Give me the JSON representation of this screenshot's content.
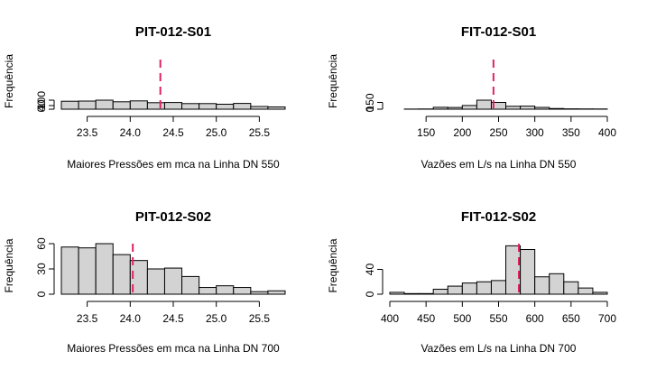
{
  "chart_data": [
    {
      "type": "histogram",
      "title": "PIT-012-S01",
      "xlabel": "Maiores Pressões em mca na Linha DN 550",
      "ylabel": "Frequência",
      "xlim": [
        23.2,
        25.8
      ],
      "ylim": [
        0,
        100
      ],
      "xticks": [
        23.5,
        24.0,
        24.5,
        25.0,
        25.5
      ],
      "xtick_labels": [
        "23.5",
        "24.0",
        "24.5",
        "25.0",
        "25.5"
      ],
      "yticks": [
        0,
        40,
        100
      ],
      "ytick_labels": [
        "0",
        "40",
        "100"
      ],
      "bins": [
        23.2,
        23.4,
        23.6,
        23.8,
        24.0,
        24.2,
        24.4,
        24.6,
        24.8,
        25.0,
        25.2,
        25.4,
        25.6,
        25.8
      ],
      "counts": [
        88,
        90,
        100,
        82,
        92,
        72,
        74,
        62,
        62,
        55,
        64,
        30,
        25
      ],
      "reference_line": 24.35,
      "reference_color": "#e0245e"
    },
    {
      "type": "histogram",
      "title": "FIT-012-S01",
      "xlabel": "Vazões em L/s na Linha DN 550",
      "ylabel": "Frequência",
      "xlim": [
        100,
        400
      ],
      "ylim": [
        0,
        200
      ],
      "xticks": [
        150,
        200,
        250,
        300,
        350,
        400
      ],
      "xtick_labels": [
        "150",
        "200",
        "250",
        "300",
        "350",
        "400"
      ],
      "yticks": [
        0,
        150
      ],
      "ytick_labels": [
        "0",
        "150"
      ],
      "bins": [
        120,
        140,
        160,
        180,
        200,
        220,
        240,
        260,
        280,
        300,
        320,
        340,
        360,
        380,
        400
      ],
      "counts": [
        3,
        5,
        42,
        38,
        82,
        200,
        150,
        65,
        68,
        40,
        15,
        8,
        6,
        5
      ],
      "reference_line": 243,
      "reference_color": "#e0245e"
    },
    {
      "type": "histogram",
      "title": "PIT-012-S02",
      "xlabel": "Maiores Pressões em mca na Linha DN 700",
      "ylabel": "Frequência",
      "xlim": [
        23.2,
        25.8
      ],
      "ylim": [
        0,
        60
      ],
      "xticks": [
        23.5,
        24.0,
        24.5,
        25.0,
        25.5
      ],
      "xtick_labels": [
        "23.5",
        "24.0",
        "24.5",
        "25.0",
        "25.5"
      ],
      "yticks": [
        0,
        30,
        60
      ],
      "ytick_labels": [
        "0",
        "30",
        "60"
      ],
      "bins": [
        23.2,
        23.4,
        23.6,
        23.8,
        24.0,
        24.2,
        24.4,
        24.6,
        24.8,
        25.0,
        25.2,
        25.4,
        25.6,
        25.8
      ],
      "counts": [
        56,
        55,
        60,
        47,
        40,
        30,
        31,
        21,
        8,
        10,
        8,
        3,
        4
      ],
      "reference_line": 24.03,
      "reference_color": "#e0245e"
    },
    {
      "type": "histogram",
      "title": "FIT-012-S02",
      "xlabel": "Vazões em L/s na Linha DN 700",
      "ylabel": "Frequência",
      "xlim": [
        400,
        700
      ],
      "ylim": [
        0,
        80
      ],
      "xticks": [
        400,
        450,
        500,
        550,
        600,
        650,
        700
      ],
      "xtick_labels": [
        "400",
        "450",
        "500",
        "550",
        "600",
        "650",
        "700"
      ],
      "yticks": [
        0,
        40
      ],
      "ytick_labels": [
        "0",
        "40"
      ],
      "bins": [
        400,
        420,
        440,
        460,
        480,
        500,
        520,
        540,
        560,
        580,
        600,
        620,
        640,
        660,
        680,
        700
      ],
      "counts": [
        3,
        1,
        1,
        8,
        13,
        18,
        20,
        22,
        78,
        72,
        28,
        33,
        20,
        10,
        3
      ],
      "reference_line": 578,
      "reference_color": "#e0245e"
    }
  ]
}
